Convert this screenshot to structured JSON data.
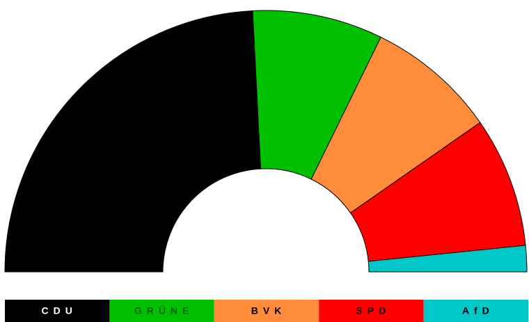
{
  "chart_data": {
    "type": "semicircle",
    "categories": [
      "CDU",
      "GRÜNE",
      "BVK",
      "SPD",
      "AfD"
    ],
    "values": [
      15,
      5,
      5,
      5,
      1
    ],
    "colors": [
      "#000000",
      "#00c000",
      "#ff8c3a",
      "#ff0000",
      "#00c8c8"
    ],
    "label_colors": [
      "#ffffff",
      "#006000",
      "#000000",
      "#000000",
      "#000000"
    ]
  }
}
